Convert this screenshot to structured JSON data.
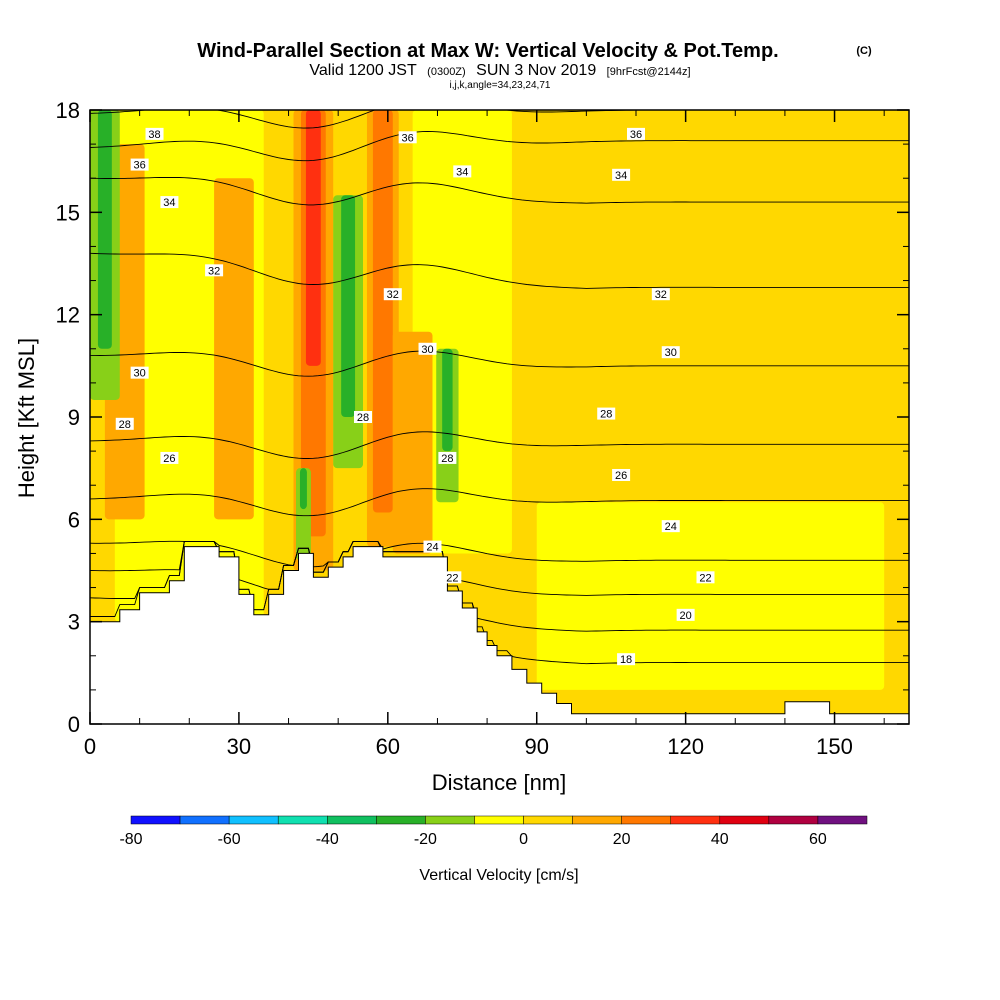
{
  "chart_data": {
    "type": "contour",
    "title": "Wind-Parallel Section at Max W: Vertical Velocity & Pot.Temp.",
    "title_mark": "(C)",
    "subtitle_parts": {
      "valid": "Valid 1200 JST",
      "utc": "(0300Z)",
      "date": "SUN 3 Nov 2019",
      "fcst": "[9hrFcst@2144z]"
    },
    "subtitle2": "i,j,k,angle=34,23,24,71",
    "xlabel": "Distance [nm]",
    "ylabel": "Height [Kft MSL]",
    "xlim": [
      0,
      165
    ],
    "ylim": [
      0,
      18
    ],
    "xticks": [
      0,
      30,
      60,
      90,
      120,
      150
    ],
    "yticks": [
      0,
      3,
      6,
      9,
      12,
      15,
      18
    ],
    "colorbar": {
      "label": "Vertical Velocity [cm/s]",
      "min": -80,
      "max": 70,
      "step": 10,
      "ticks": [
        -80,
        -60,
        -40,
        -20,
        0,
        20,
        40,
        60
      ],
      "colors": [
        "#1010ff",
        "#1070ff",
        "#10c0ff",
        "#10e0b0",
        "#10c060",
        "#28b028",
        "#88d018",
        "#ffff00",
        "#ffd800",
        "#ffa800",
        "#ff7800",
        "#ff3010",
        "#e00010",
        "#b00040",
        "#701080"
      ]
    },
    "terrain": [
      [
        0,
        3
      ],
      [
        6,
        3
      ],
      [
        6,
        3.35
      ],
      [
        10,
        3.35
      ],
      [
        10,
        3.85
      ],
      [
        16,
        3.85
      ],
      [
        16,
        4.2
      ],
      [
        19,
        4.2
      ],
      [
        19,
        5.2
      ],
      [
        26,
        5.2
      ],
      [
        26,
        4.9
      ],
      [
        30,
        4.9
      ],
      [
        30,
        3.8
      ],
      [
        33,
        3.8
      ],
      [
        33,
        3.2
      ],
      [
        36,
        3.2
      ],
      [
        36,
        3.8
      ],
      [
        39,
        3.8
      ],
      [
        39,
        4.5
      ],
      [
        42,
        4.5
      ],
      [
        42,
        5.0
      ],
      [
        45,
        5.0
      ],
      [
        45,
        4.3
      ],
      [
        48,
        4.3
      ],
      [
        48,
        4.6
      ],
      [
        51,
        4.6
      ],
      [
        51,
        4.9
      ],
      [
        53,
        4.9
      ],
      [
        53,
        5.2
      ],
      [
        59,
        5.2
      ],
      [
        59,
        4.9
      ],
      [
        72,
        4.9
      ],
      [
        72,
        3.9
      ],
      [
        75,
        3.9
      ],
      [
        75,
        3.4
      ],
      [
        78,
        3.4
      ],
      [
        78,
        2.7
      ],
      [
        80,
        2.7
      ],
      [
        80,
        2.3
      ],
      [
        82,
        2.3
      ],
      [
        82,
        2.0
      ],
      [
        85,
        2.0
      ],
      [
        85,
        1.6
      ],
      [
        88,
        1.6
      ],
      [
        88,
        1.2
      ],
      [
        91,
        1.2
      ],
      [
        91,
        0.9
      ],
      [
        94,
        0.9
      ],
      [
        94,
        0.6
      ],
      [
        97,
        0.6
      ],
      [
        97,
        0.3
      ],
      [
        140,
        0.3
      ],
      [
        140,
        0.65
      ],
      [
        149,
        0.65
      ],
      [
        149,
        0.3
      ],
      [
        165,
        0.3
      ]
    ],
    "isentropes": [
      {
        "label": "18",
        "y0": 3.0,
        "y_east": 1.8
      },
      {
        "label": "20",
        "y0": 3.7,
        "y_east": 2.75
      },
      {
        "label": "22",
        "y0": 4.5,
        "y_east": 3.8
      },
      {
        "label": "24",
        "y0": 5.3,
        "y_east": 4.8
      },
      {
        "label": "26",
        "y0": 6.6,
        "y_east": 6.55
      },
      {
        "label": "28",
        "y0": 8.3,
        "y_east": 8.2
      },
      {
        "label": "30",
        "y0": 10.8,
        "y_east": 10.5
      },
      {
        "label": "32",
        "y0": 13.8,
        "y_east": 12.8
      },
      {
        "label": "34",
        "y0": 16.0,
        "y_east": 15.3
      },
      {
        "label": "36",
        "y0": 16.9,
        "y_east": 17.1
      },
      {
        "label": "38",
        "y0": 17.9,
        "y_east": 18.0
      }
    ],
    "contour_labels": [
      {
        "text": "38",
        "x": 13,
        "y": 17.3
      },
      {
        "text": "36",
        "x": 10,
        "y": 16.4
      },
      {
        "text": "34",
        "x": 16,
        "y": 15.3
      },
      {
        "text": "32",
        "x": 25,
        "y": 13.3
      },
      {
        "text": "30",
        "x": 10,
        "y": 10.3
      },
      {
        "text": "28",
        "x": 7,
        "y": 8.8
      },
      {
        "text": "26",
        "x": 16,
        "y": 7.8
      },
      {
        "text": "36",
        "x": 64,
        "y": 17.2
      },
      {
        "text": "34",
        "x": 75,
        "y": 16.2
      },
      {
        "text": "32",
        "x": 61,
        "y": 12.6
      },
      {
        "text": "30",
        "x": 68,
        "y": 11.0
      },
      {
        "text": "28",
        "x": 55,
        "y": 9.0
      },
      {
        "text": "28",
        "x": 72,
        "y": 7.8
      },
      {
        "text": "24",
        "x": 69,
        "y": 5.2
      },
      {
        "text": "22",
        "x": 73,
        "y": 4.3
      },
      {
        "text": "36",
        "x": 110,
        "y": 17.3
      },
      {
        "text": "34",
        "x": 107,
        "y": 16.1
      },
      {
        "text": "32",
        "x": 115,
        "y": 12.6
      },
      {
        "text": "30",
        "x": 117,
        "y": 10.9
      },
      {
        "text": "28",
        "x": 104,
        "y": 9.1
      },
      {
        "text": "26",
        "x": 107,
        "y": 7.3
      },
      {
        "text": "24",
        "x": 117,
        "y": 5.8
      },
      {
        "text": "22",
        "x": 124,
        "y": 4.3
      },
      {
        "text": "20",
        "x": 120,
        "y": 3.2
      },
      {
        "text": "18",
        "x": 108,
        "y": 1.9
      }
    ],
    "updrafts": [
      {
        "x": 45,
        "ymin": 4.5,
        "ymax": 18,
        "w": 5,
        "strength": 3
      },
      {
        "x": 59,
        "ymin": 5.2,
        "ymax": 18,
        "w": 4,
        "strength": 2
      },
      {
        "x": 65,
        "ymin": 5.0,
        "ymax": 11.5,
        "w": 5,
        "strength": 1
      },
      {
        "x": 29,
        "ymin": 6.0,
        "ymax": 16.0,
        "w": 5,
        "strength": 1
      },
      {
        "x": 7,
        "ymin": 6.0,
        "ymax": 17.0,
        "w": 5,
        "strength": 1
      }
    ],
    "downdrafts": [
      {
        "x": 3,
        "ymin": 9.5,
        "ymax": 18,
        "w": 4
      },
      {
        "x": 52,
        "ymin": 7.5,
        "ymax": 15.5,
        "w": 4
      },
      {
        "x": 72,
        "ymin": 6.5,
        "ymax": 11.0,
        "w": 3
      },
      {
        "x": 43,
        "ymin": 4.8,
        "ymax": 7.5,
        "w": 2
      }
    ]
  }
}
